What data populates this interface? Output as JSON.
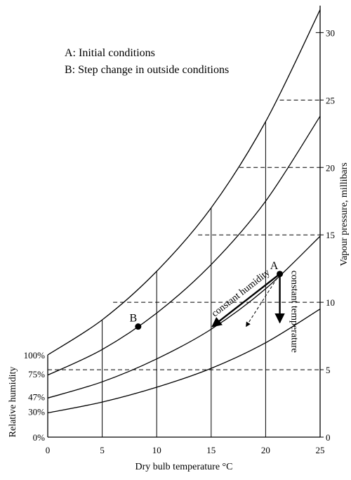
{
  "legend": {
    "line_a": "A: Initial conditions",
    "line_b": "B: Step change in outside conditions"
  },
  "chart_data": {
    "type": "line",
    "x_axis": {
      "label": "Dry bulb temperature °C",
      "range": [
        0,
        25
      ],
      "ticks": [
        "0",
        "5",
        "10",
        "15",
        "20",
        "25"
      ]
    },
    "y_axis_right": {
      "label": "Vapour pressure, millibars",
      "range": [
        0,
        32
      ],
      "ticks": [
        "0",
        "5",
        "10",
        "15",
        "20",
        "25",
        "30"
      ]
    },
    "y_axis_left": {
      "label": "Relative humidity",
      "ticks": [
        {
          "label": "0%",
          "vp": 0
        },
        {
          "label": "30%",
          "vp": 1.9
        },
        {
          "label": "47%",
          "vp": 3.0
        },
        {
          "label": "75%",
          "vp": 4.7
        },
        {
          "label": "100%",
          "vp": 6.1
        }
      ]
    },
    "series": [
      {
        "rh": 100,
        "x": [
          0,
          5,
          10,
          15,
          20,
          25
        ],
        "y": [
          6.1,
          8.7,
          12.3,
          17.0,
          23.4,
          31.7
        ]
      },
      {
        "rh": 75,
        "x": [
          0,
          5,
          10,
          15,
          20,
          25
        ],
        "y": [
          4.6,
          6.5,
          9.2,
          12.8,
          17.5,
          23.8
        ]
      },
      {
        "rh": 47,
        "x": [
          0,
          5,
          10,
          15,
          20,
          25
        ],
        "y": [
          2.9,
          4.1,
          5.8,
          8.0,
          11.0,
          14.9
        ]
      },
      {
        "rh": 30,
        "x": [
          0,
          5,
          10,
          15,
          20,
          25
        ],
        "y": [
          1.8,
          2.6,
          3.7,
          5.1,
          7.0,
          9.5
        ]
      }
    ],
    "grid_verticals": [
      {
        "x": 5,
        "y_top": 8.7
      },
      {
        "x": 10,
        "y_top": 12.3
      },
      {
        "x": 15,
        "y_top": 17.0
      },
      {
        "x": 20,
        "y_top": 23.4
      }
    ],
    "grid_horizontals": [
      {
        "y": 5,
        "x_from": 0
      },
      {
        "y": 10,
        "x_from": 6
      },
      {
        "y": 15,
        "x_from": 13.8
      },
      {
        "y": 20,
        "x_from": 17.6
      },
      {
        "y": 25,
        "x_from": 21.3
      },
      {
        "y": 30,
        "x_from": 24.6
      }
    ],
    "points": [
      {
        "label": "A",
        "x": 21.3,
        "y": 12.1
      },
      {
        "label": "B",
        "x": 8.3,
        "y": 8.2
      }
    ],
    "annotations": [
      {
        "text": "constant humidity",
        "from": [
          21.3,
          12.1
        ],
        "to": [
          15.1,
          8.2
        ],
        "style": "solid"
      },
      {
        "text": "constant temperature",
        "from": [
          21.3,
          12.1
        ],
        "to": [
          21.3,
          8.5
        ],
        "style": "solid"
      },
      {
        "text": "",
        "from": [
          21.3,
          12.1
        ],
        "to": [
          18.2,
          8.2
        ],
        "style": "dashed"
      }
    ]
  }
}
